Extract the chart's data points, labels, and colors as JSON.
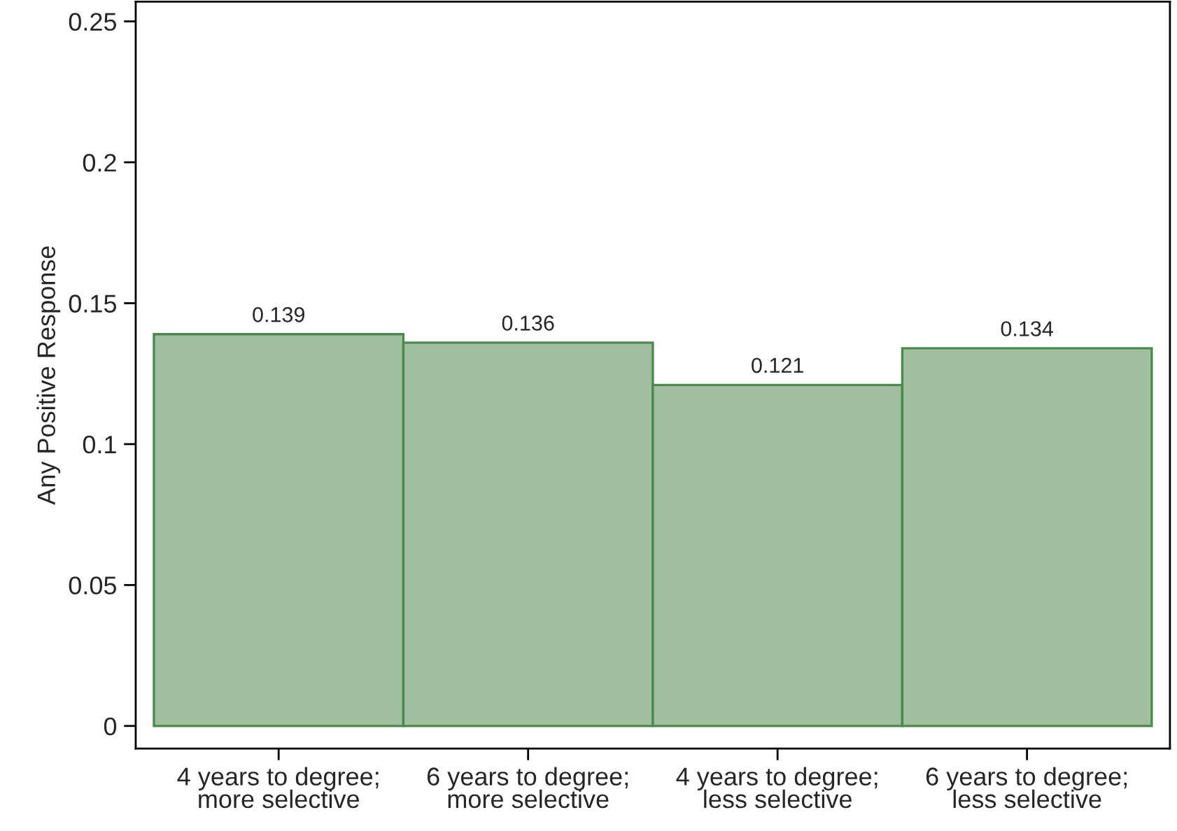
{
  "chart_data": {
    "type": "bar",
    "ylabel": "Any Positive Response",
    "categories": [
      "4 years to degree;\nmore selective",
      "6 years to degree;\nmore selective",
      "4 years to degree;\nless selective",
      "6 years to degree;\nless selective"
    ],
    "values": [
      0.139,
      0.136,
      0.121,
      0.134
    ],
    "color": "#a0bfa0",
    "data_labels": true,
    "ylim": [
      -0.008,
      0.257
    ],
    "yticks": [
      0,
      0.05,
      0.1,
      0.15,
      0.2,
      0.25
    ],
    "grid": false
  }
}
